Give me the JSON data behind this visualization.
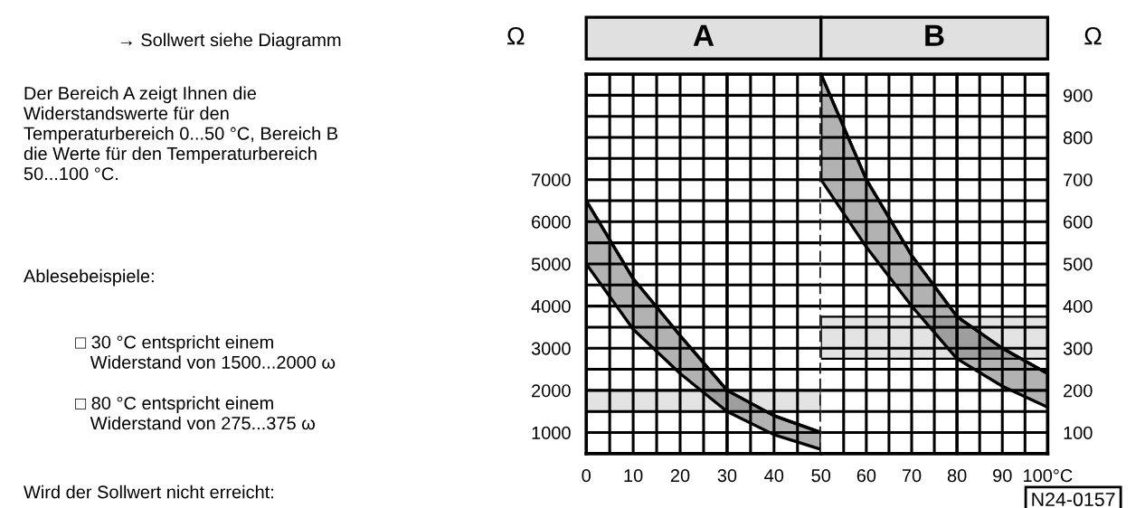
{
  "chart_data": [
    {
      "type": "other",
      "annotations": [
        "→ Sollwert siehe Diagramm",
        "Der Bereich A zeigt Ihnen die\nWiderstandswerte für den\nTemperaturbereich 0...50 °C, Bereich B\ndie Werte für den Temperaturbereich\n50...100 °C.",
        "Ablesebeispiele:",
        "□ 30 °C entspricht einem\n   Widerstand von 1500...2000 ω",
        "□ 80 °C entspricht einem\n   Widerstand von 275...375 ω",
        "Wird der Sollwert nicht erreicht:"
      ]
    },
    {
      "type": "line",
      "title": "A",
      "ylabel": "Ω",
      "x": [
        0,
        10,
        20,
        30,
        40,
        50
      ],
      "series": [
        {
          "color": "#000000",
          "values": [
            6500,
            4650,
            3300,
            2000,
            1400,
            1000
          ],
          "lower": [
            5000,
            3450,
            2400,
            1500,
            950,
            600
          ],
          "upper": [
            6500,
            4650,
            3300,
            2000,
            1400,
            1000
          ]
        }
      ],
      "xlim": [
        0,
        50
      ],
      "ylim": [
        500,
        9500
      ],
      "xticks": [
        0,
        {
          "value": 5,
          "label": null
        },
        10,
        {
          "value": 15,
          "label": null
        },
        20,
        {
          "value": 25,
          "label": null
        },
        30,
        {
          "value": 35,
          "label": null
        },
        40,
        {
          "value": 45,
          "label": null
        },
        50
      ],
      "yticks": [
        {
          "value": 500,
          "label": null
        },
        1000,
        {
          "value": 1500,
          "label": null
        },
        2000,
        {
          "value": 2500,
          "label": null
        },
        3000,
        {
          "value": 3500,
          "label": null
        },
        4000,
        {
          "value": 4500,
          "label": null
        },
        5000,
        {
          "value": 5500,
          "label": null
        },
        6000,
        {
          "value": 6500,
          "label": null
        },
        7000,
        {
          "value": 7500,
          "label": null
        },
        {
          "value": 8000,
          "label": null
        },
        {
          "value": 8500,
          "label": null
        },
        {
          "value": 9000,
          "label": null
        },
        {
          "value": 9500,
          "label": null
        }
      ],
      "grid": true,
      "ref_lines": [
        {
          "axis": "x",
          "value": 30,
          "color": "#000000",
          "line_style": "solid"
        },
        {
          "axis": "x",
          "value": 50,
          "color": "#000000",
          "line_style": "dashed"
        }
      ],
      "bands": [
        {
          "axis": "y",
          "from": 1500,
          "to": 2000,
          "color": "#e3e3e3"
        }
      ]
    },
    {
      "type": "line",
      "title": "B",
      "y2label": "Ω",
      "x": [
        50,
        60,
        70,
        80,
        90,
        100
      ],
      "series": [
        {
          "axis": "y2",
          "color": "#000000",
          "values": [
            950,
            700,
            520,
            375,
            300,
            240
          ],
          "lower": [
            700,
            540,
            400,
            275,
            210,
            160
          ],
          "upper": [
            950,
            700,
            520,
            375,
            300,
            240
          ]
        }
      ],
      "xlim": [
        50,
        100
      ],
      "y2lim": [
        50,
        950
      ],
      "xticks": [
        {
          "value": 55,
          "label": null
        },
        60,
        {
          "value": 65,
          "label": null
        },
        70,
        {
          "value": 75,
          "label": null
        },
        80,
        {
          "value": 85,
          "label": null
        },
        90,
        {
          "value": 95,
          "label": null
        },
        {
          "value": 100,
          "label": "100°C"
        }
      ],
      "y2ticks": [
        {
          "value": 50,
          "label": null
        },
        100,
        {
          "value": 150,
          "label": null
        },
        200,
        {
          "value": 250,
          "label": null
        },
        300,
        {
          "value": 350,
          "label": null
        },
        400,
        {
          "value": 450,
          "label": null
        },
        500,
        {
          "value": 550,
          "label": null
        },
        600,
        {
          "value": 650,
          "label": null
        },
        700,
        {
          "value": 750,
          "label": null
        },
        800,
        {
          "value": 850,
          "label": null
        },
        900,
        {
          "value": 950,
          "label": null
        }
      ],
      "grid": true,
      "ref_lines": [
        {
          "axis": "x",
          "value": 80,
          "color": "#000000",
          "line_style": "solid"
        }
      ],
      "bands": [
        {
          "axis": "y2",
          "from": 275,
          "to": 375,
          "color": "#e3e3e3"
        }
      ],
      "annotations": [
        "N24-0157"
      ]
    }
  ]
}
